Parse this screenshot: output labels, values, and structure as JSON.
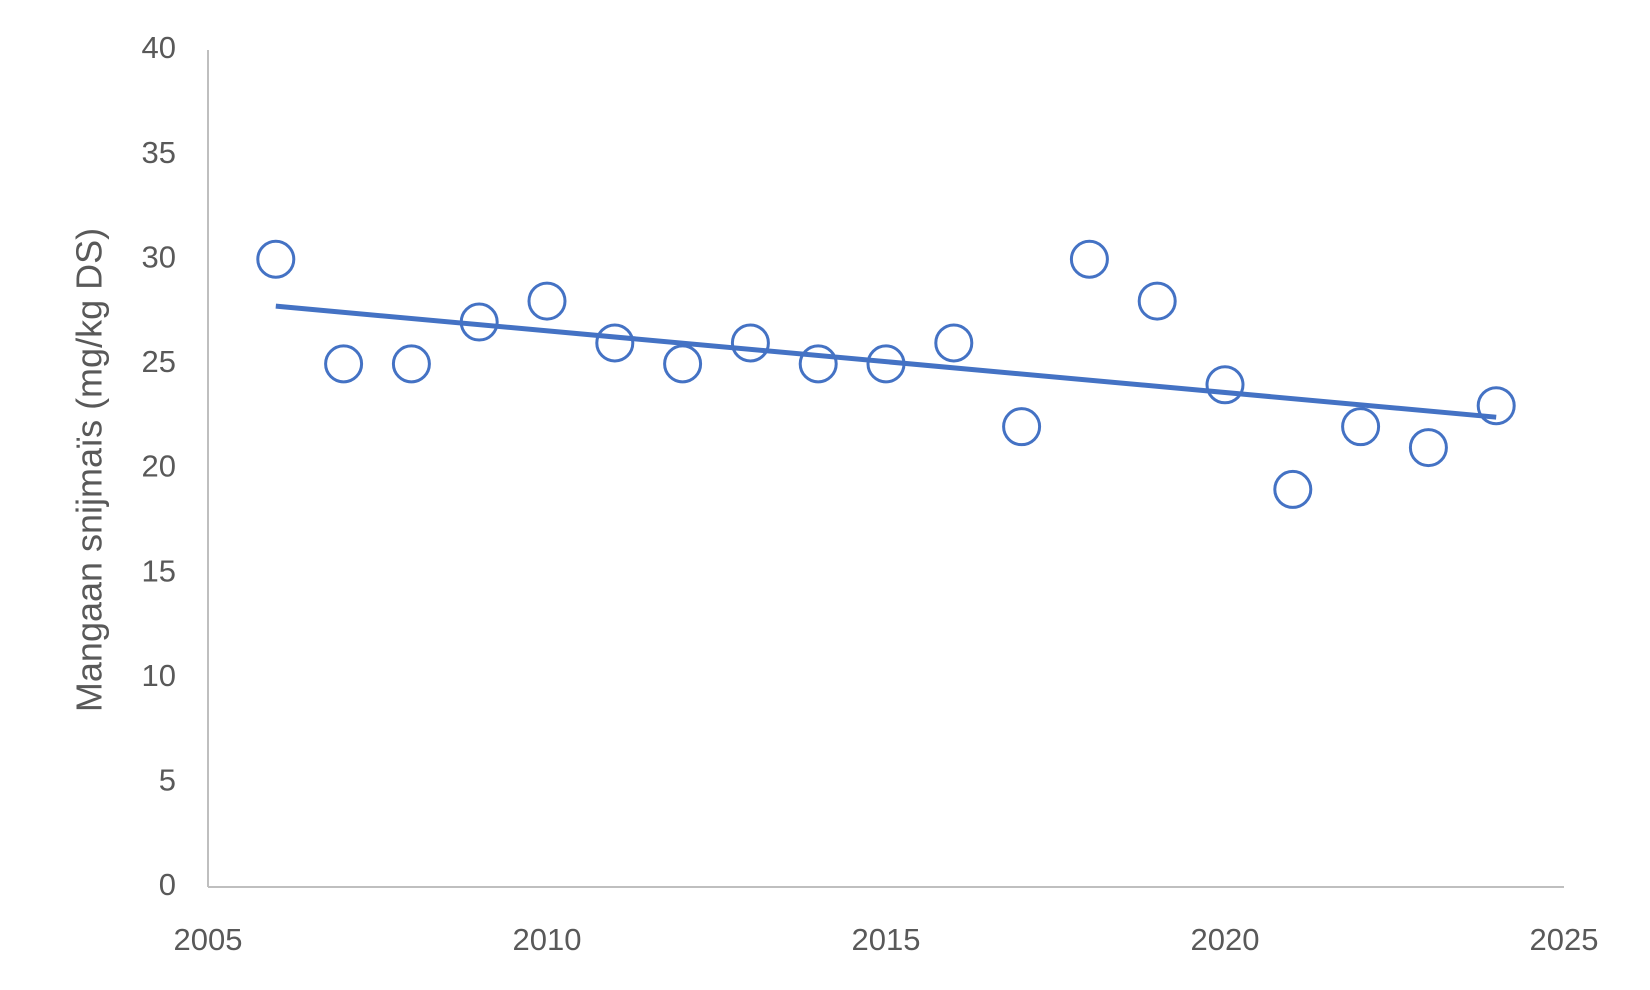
{
  "chart_data": {
    "type": "scatter",
    "y_label": "Mangaan snijmaïs (mg/kg DS)",
    "series": [
      {
        "color": "#4472c4",
        "x": [
          2006,
          2007,
          2008,
          2009,
          2010,
          2011,
          2012,
          2013,
          2014,
          2015,
          2016,
          2017,
          2018,
          2019,
          2020,
          2021,
          2022,
          2023,
          2024
        ],
        "values": [
          30,
          25,
          25,
          27,
          28,
          26,
          25,
          26,
          25,
          25,
          26,
          22,
          30,
          28,
          24,
          19,
          22,
          21,
          23
        ]
      }
    ],
    "trendline": "linear",
    "xlim": [
      2005,
      2025
    ],
    "xticks": [
      2005,
      2010,
      2015,
      2020,
      2025
    ],
    "ylim": [
      0,
      40
    ],
    "yticks": [
      0,
      5,
      10,
      15,
      20,
      25,
      30,
      35,
      40
    ],
    "grid": false
  }
}
